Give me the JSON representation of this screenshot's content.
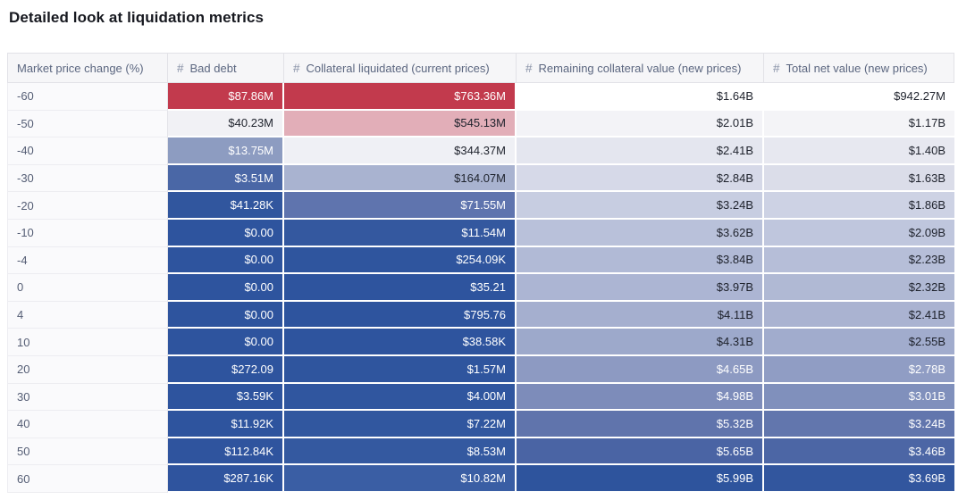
{
  "title": "Detailed look at liquidation metrics",
  "colors": {
    "max_red": "#c23a4d",
    "max_blue": "#2e549e",
    "header_bg": "#f6f6f8",
    "header_text": "#5c6780",
    "label_text": "#555e75"
  },
  "table": {
    "hash_icon": "#",
    "columns": [
      {
        "label": "Market price change (%)",
        "numeric": false
      },
      {
        "label": "Bad debt",
        "numeric": true
      },
      {
        "label": "Collateral liquidated (current prices)",
        "numeric": true
      },
      {
        "label": "Remaining collateral value (new prices)",
        "numeric": true
      },
      {
        "label": "Total net value (new prices)",
        "numeric": true
      }
    ],
    "rows": [
      {
        "label": "-60",
        "cells": [
          {
            "v": "$87.86M",
            "bg": "#c23a4d",
            "fg": "light"
          },
          {
            "v": "$763.36M",
            "bg": "#c23a4d",
            "fg": "light"
          },
          {
            "v": "$1.64B",
            "bg": "#ffffff",
            "fg": "dark"
          },
          {
            "v": "$942.27M",
            "bg": "#ffffff",
            "fg": "dark"
          }
        ]
      },
      {
        "label": "-50",
        "cells": [
          {
            "v": "$40.23M",
            "bg": "#f1f1f5",
            "fg": "dark"
          },
          {
            "v": "$545.13M",
            "bg": "#e2aeb8",
            "fg": "dark"
          },
          {
            "v": "$2.01B",
            "bg": "#f3f3f7",
            "fg": "dark"
          },
          {
            "v": "$1.17B",
            "bg": "#f4f4f7",
            "fg": "dark"
          }
        ]
      },
      {
        "label": "-40",
        "cells": [
          {
            "v": "$13.75M",
            "bg": "#8d9cc1",
            "fg": "light"
          },
          {
            "v": "$344.37M",
            "bg": "#eff0f5",
            "fg": "dark"
          },
          {
            "v": "$2.41B",
            "bg": "#e4e6ef",
            "fg": "dark"
          },
          {
            "v": "$1.40B",
            "bg": "#e7e8f0",
            "fg": "dark"
          }
        ]
      },
      {
        "label": "-30",
        "cells": [
          {
            "v": "$3.51M",
            "bg": "#4a67a6",
            "fg": "light"
          },
          {
            "v": "$164.07M",
            "bg": "#a9b3d0",
            "fg": "dark"
          },
          {
            "v": "$2.84B",
            "bg": "#d6d9e8",
            "fg": "dark"
          },
          {
            "v": "$1.63B",
            "bg": "#dbdde9",
            "fg": "dark"
          }
        ]
      },
      {
        "label": "-20",
        "cells": [
          {
            "v": "$41.28K",
            "bg": "#31569e",
            "fg": "light"
          },
          {
            "v": "$71.55M",
            "bg": "#5f74ae",
            "fg": "light"
          },
          {
            "v": "$3.24B",
            "bg": "#c7cde1",
            "fg": "dark"
          },
          {
            "v": "$1.86B",
            "bg": "#cdd2e4",
            "fg": "dark"
          }
        ]
      },
      {
        "label": "-10",
        "cells": [
          {
            "v": "$0.00",
            "bg": "#2e549e",
            "fg": "light"
          },
          {
            "v": "$11.54M",
            "bg": "#34589f",
            "fg": "light"
          },
          {
            "v": "$3.62B",
            "bg": "#b9c1da",
            "fg": "dark"
          },
          {
            "v": "$2.09B",
            "bg": "#bfc6dd",
            "fg": "dark"
          }
        ]
      },
      {
        "label": "-4",
        "cells": [
          {
            "v": "$0.00",
            "bg": "#2e549e",
            "fg": "light"
          },
          {
            "v": "$254.09K",
            "bg": "#2f559e",
            "fg": "light"
          },
          {
            "v": "$3.84B",
            "bg": "#b1bad6",
            "fg": "dark"
          },
          {
            "v": "$2.23B",
            "bg": "#b6bed8",
            "fg": "dark"
          }
        ]
      },
      {
        "label": "0",
        "cells": [
          {
            "v": "$0.00",
            "bg": "#2e549e",
            "fg": "light"
          },
          {
            "v": "$35.21",
            "bg": "#2e549e",
            "fg": "light"
          },
          {
            "v": "$3.97B",
            "bg": "#acb5d3",
            "fg": "dark"
          },
          {
            "v": "$2.32B",
            "bg": "#b0b9d4",
            "fg": "dark"
          }
        ]
      },
      {
        "label": "4",
        "cells": [
          {
            "v": "$0.00",
            "bg": "#2e549e",
            "fg": "light"
          },
          {
            "v": "$795.76",
            "bg": "#2e549e",
            "fg": "light"
          },
          {
            "v": "$4.11B",
            "bg": "#a5afcf",
            "fg": "dark"
          },
          {
            "v": "$2.41B",
            "bg": "#aab3d1",
            "fg": "dark"
          }
        ]
      },
      {
        "label": "10",
        "cells": [
          {
            "v": "$0.00",
            "bg": "#2e549e",
            "fg": "light"
          },
          {
            "v": "$38.58K",
            "bg": "#2e549e",
            "fg": "light"
          },
          {
            "v": "$4.31B",
            "bg": "#9da9cb",
            "fg": "dark"
          },
          {
            "v": "$2.55B",
            "bg": "#a1accd",
            "fg": "dark"
          }
        ]
      },
      {
        "label": "20",
        "cells": [
          {
            "v": "$272.09",
            "bg": "#2e549e",
            "fg": "light"
          },
          {
            "v": "$1.57M",
            "bg": "#2f559e",
            "fg": "light"
          },
          {
            "v": "$4.65B",
            "bg": "#8d9ac2",
            "fg": "light"
          },
          {
            "v": "$2.78B",
            "bg": "#909dc4",
            "fg": "light"
          }
        ]
      },
      {
        "label": "30",
        "cells": [
          {
            "v": "$3.59K",
            "bg": "#2e549e",
            "fg": "light"
          },
          {
            "v": "$4.00M",
            "bg": "#30569f",
            "fg": "light"
          },
          {
            "v": "$4.98B",
            "bg": "#7d8cba",
            "fg": "light"
          },
          {
            "v": "$3.01B",
            "bg": "#8090bc",
            "fg": "light"
          }
        ]
      },
      {
        "label": "40",
        "cells": [
          {
            "v": "$11.92K",
            "bg": "#2e549e",
            "fg": "light"
          },
          {
            "v": "$7.22M",
            "bg": "#31579f",
            "fg": "light"
          },
          {
            "v": "$5.32B",
            "bg": "#6074ac",
            "fg": "light"
          },
          {
            "v": "$3.24B",
            "bg": "#6276ad",
            "fg": "light"
          }
        ]
      },
      {
        "label": "50",
        "cells": [
          {
            "v": "$112.84K",
            "bg": "#2f549e",
            "fg": "light"
          },
          {
            "v": "$8.53M",
            "bg": "#3459a0",
            "fg": "light"
          },
          {
            "v": "$5.65B",
            "bg": "#4a64a4",
            "fg": "light"
          },
          {
            "v": "$3.46B",
            "bg": "#4c66a5",
            "fg": "light"
          }
        ]
      },
      {
        "label": "60",
        "cells": [
          {
            "v": "$287.16K",
            "bg": "#2f549e",
            "fg": "light"
          },
          {
            "v": "$10.82M",
            "bg": "#3a5ea4",
            "fg": "light"
          },
          {
            "v": "$5.99B",
            "bg": "#2e549d",
            "fg": "light"
          },
          {
            "v": "$3.69B",
            "bg": "#32569e",
            "fg": "light"
          }
        ]
      }
    ]
  },
  "chart_data": {
    "type": "table",
    "title": "Detailed look at liquidation metrics",
    "columns": [
      "Market price change (%)",
      "Bad debt",
      "Collateral liquidated (current prices)",
      "Remaining collateral value (new prices)",
      "Total net value (new prices)"
    ],
    "rows": [
      [
        -60,
        "$87.86M",
        "$763.36M",
        "$1.64B",
        "$942.27M"
      ],
      [
        -50,
        "$40.23M",
        "$545.13M",
        "$2.01B",
        "$1.17B"
      ],
      [
        -40,
        "$13.75M",
        "$344.37M",
        "$2.41B",
        "$1.40B"
      ],
      [
        -30,
        "$3.51M",
        "$164.07M",
        "$2.84B",
        "$1.63B"
      ],
      [
        -20,
        "$41.28K",
        "$71.55M",
        "$3.24B",
        "$1.86B"
      ],
      [
        -10,
        "$0.00",
        "$11.54M",
        "$3.62B",
        "$2.09B"
      ],
      [
        -4,
        "$0.00",
        "$254.09K",
        "$3.84B",
        "$2.23B"
      ],
      [
        0,
        "$0.00",
        "$35.21",
        "$3.97B",
        "$2.32B"
      ],
      [
        4,
        "$0.00",
        "$795.76",
        "$4.11B",
        "$2.41B"
      ],
      [
        10,
        "$0.00",
        "$38.58K",
        "$4.31B",
        "$2.55B"
      ],
      [
        20,
        "$272.09",
        "$1.57M",
        "$4.65B",
        "$2.78B"
      ],
      [
        30,
        "$3.59K",
        "$4.00M",
        "$4.98B",
        "$3.01B"
      ],
      [
        40,
        "$11.92K",
        "$7.22M",
        "$5.32B",
        "$3.24B"
      ],
      [
        50,
        "$112.84K",
        "$8.53M",
        "$5.65B",
        "$3.46B"
      ],
      [
        60,
        "$287.16K",
        "$10.82M",
        "$5.99B",
        "$3.69B"
      ]
    ],
    "layout_hints": {
      "cell_shading": "diverging red-white-blue heatmap per column",
      "grid": "off",
      "legend": "none"
    }
  }
}
